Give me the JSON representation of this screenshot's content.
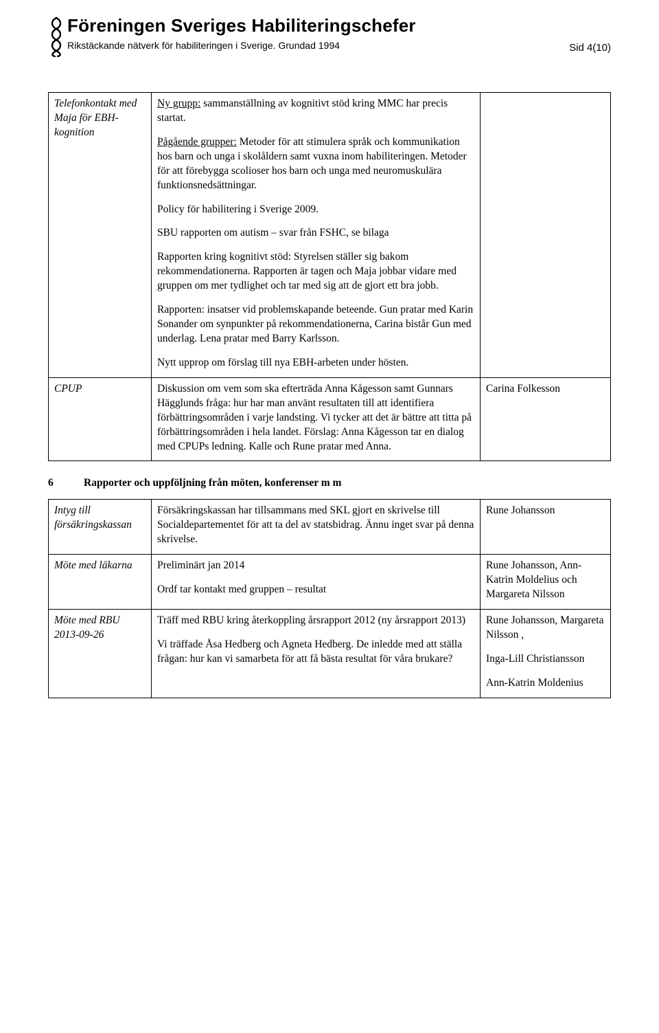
{
  "header": {
    "org_name": "Föreningen Sveriges Habiliteringschefer",
    "tagline": "Rikstäckande nätverk för habiliteringen i Sverige. Grundad 1994",
    "page_indicator_prefix": "Sid ",
    "page_indicator": "4(10)"
  },
  "rows": [
    {
      "left": "Telefonkontakt med Maja för EBH- kognition",
      "paragraphs": [
        {
          "lead_underline": "Ny grupp:",
          "rest": " sammanställning av kognitivt stöd kring MMC har precis startat."
        },
        {
          "lead_underline": "Pågående grupper:",
          "rest": " Metoder för att stimulera språk och kommunikation hos barn och unga i skolåldern samt vuxna inom habiliteringen. Metoder för att förebygga scolioser hos barn och unga med neuromuskulära funktionsnedsättningar."
        },
        {
          "text": "Policy för habilitering i Sverige 2009."
        },
        {
          "text": "SBU rapporten om autism – svar från FSHC, se bilaga"
        },
        {
          "text": "Rapporten kring kognitivt stöd: Styrelsen ställer sig bakom rekommendationerna. Rapporten är tagen och Maja jobbar vidare med gruppen om mer tydlighet och tar med sig att de gjort ett bra jobb."
        },
        {
          "text": "Rapporten: insatser vid problemskapande beteende. Gun pratar med Karin Sonander om synpunkter på rekommendationerna, Carina bistår Gun med underlag. Lena pratar med Barry Karlsson."
        },
        {
          "text": "Nytt upprop om förslag till nya EBH-arbeten under hösten."
        }
      ],
      "right": ""
    },
    {
      "left": "CPUP",
      "paragraphs": [
        {
          "text": "Diskussion om vem som ska efterträda Anna Kågesson samt Gunnars Hägglunds fråga: hur har man använt resultaten till att identifiera förbättringsområden i varje landsting. Vi tycker att det är bättre att titta på förbättringsområden i hela landet. Förslag:  Anna Kågesson tar en dialog med CPUPs ledning. Kalle och Rune pratar med Anna."
        }
      ],
      "right": "Carina Folkesson"
    }
  ],
  "section": {
    "number": "6",
    "title": "Rapporter och uppföljning från möten, konferenser m m"
  },
  "rows2": [
    {
      "left": "Intyg till försäkringskassan",
      "paragraphs": [
        {
          "text": "Försäkringskassan har tillsammans med SKL gjort en skrivelse till Socialdepartementet för att ta del av statsbidrag. Ännu inget svar på denna skrivelse."
        }
      ],
      "right": "Rune Johansson"
    },
    {
      "left": "Möte med läkarna",
      "paragraphs": [
        {
          "text": "Preliminärt jan 2014"
        },
        {
          "text": "Ordf tar kontakt med gruppen – resultat"
        }
      ],
      "right": "Rune Johansson, Ann-Katrin Moldelius och Margareta Nilsson"
    },
    {
      "left": "Möte med RBU 2013-09-26",
      "paragraphs": [
        {
          "text": "Träff med RBU kring återkoppling årsrapport 2012 (ny årsrapport 2013)"
        },
        {
          "text": "Vi träffade Åsa Hedberg och Agneta Hedberg. De inledde med att ställa frågan: hur kan vi samarbeta för att få bästa resultat för våra brukare?"
        }
      ],
      "right_lines": [
        "Rune Johansson, Margareta Nilsson ,",
        "Inga-Lill Christiansson",
        "Ann-Katrin Moldenius"
      ]
    }
  ]
}
